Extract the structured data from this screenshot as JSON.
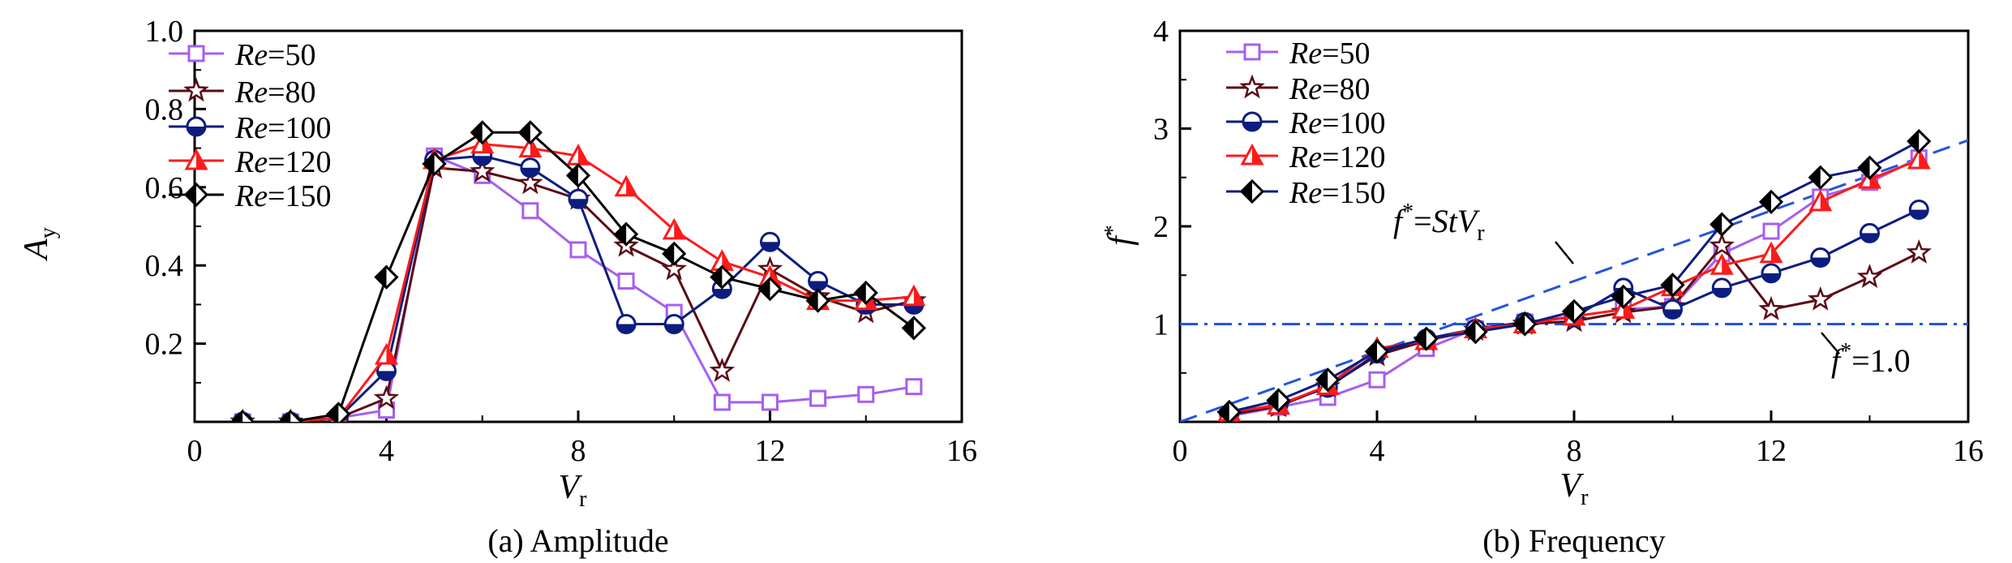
{
  "colors": {
    "re50": "#a65ff0",
    "re80": "#5a0d15",
    "re100": "#0c1d7f",
    "re120": "#ff1a1a",
    "re150": "#000000",
    "ref": "#2255dd"
  },
  "chart_data": [
    {
      "type": "line",
      "caption": "(a) Amplitude",
      "xlabel": "V",
      "xlabel_sub": "r",
      "ylabel": "A",
      "ylabel_sub": "y",
      "xlim": [
        0,
        16
      ],
      "ylim": [
        0,
        1.0
      ],
      "xticks": [
        0,
        4,
        8,
        12,
        16
      ],
      "yticks": [
        0.2,
        0.4,
        0.6,
        0.8,
        1.0
      ],
      "ytick_labels": [
        "0.2",
        "0.4",
        "0.6",
        "0.8",
        "1.0"
      ],
      "grid": false,
      "legend": "top-left",
      "x": [
        1,
        2,
        3,
        4,
        5,
        6,
        7,
        8,
        9,
        10,
        11,
        12,
        13,
        14,
        15
      ],
      "series": [
        {
          "name": "Re=50",
          "re": "50",
          "marker": "square",
          "color_key": "re50",
          "values": [
            0.0,
            0.0,
            0.01,
            0.03,
            0.68,
            0.63,
            0.54,
            0.44,
            0.36,
            0.28,
            0.05,
            0.05,
            0.06,
            0.07,
            0.09
          ]
        },
        {
          "name": "Re=80",
          "re": "80",
          "marker": "star",
          "color_key": "re80",
          "values": [
            0.0,
            0.0,
            0.01,
            0.06,
            0.65,
            0.64,
            0.61,
            0.57,
            0.45,
            0.39,
            0.13,
            0.39,
            0.32,
            0.28,
            0.31
          ]
        },
        {
          "name": "Re=100",
          "re": "100",
          "marker": "circle",
          "color_key": "re100",
          "values": [
            0.0,
            0.0,
            0.01,
            0.13,
            0.67,
            0.68,
            0.65,
            0.57,
            0.25,
            0.25,
            0.34,
            0.46,
            0.36,
            0.3,
            0.3
          ]
        },
        {
          "name": "Re=120",
          "re": "120",
          "marker": "triangle",
          "color_key": "re120",
          "values": [
            0.0,
            0.0,
            0.01,
            0.17,
            0.67,
            0.71,
            0.7,
            0.68,
            0.6,
            0.49,
            0.41,
            0.37,
            0.31,
            0.31,
            0.32
          ]
        },
        {
          "name": "Re=150",
          "re": "150",
          "marker": "diamond",
          "color_key": "re150",
          "values": [
            0.0,
            0.0,
            0.02,
            0.37,
            0.66,
            0.74,
            0.74,
            0.63,
            0.48,
            0.43,
            0.37,
            0.34,
            0.31,
            0.33,
            0.24
          ]
        }
      ]
    },
    {
      "type": "line",
      "caption": "(b) Frequency",
      "xlabel": "V",
      "xlabel_sub": "r",
      "ylabel": "f",
      "ylabel_sup": "*",
      "xlim": [
        0,
        16
      ],
      "ylim": [
        0,
        4
      ],
      "xticks": [
        0,
        4,
        8,
        12,
        16
      ],
      "yticks": [
        1,
        2,
        3,
        4
      ],
      "ytick_labels": [
        "1",
        "2",
        "3",
        "4"
      ],
      "grid": false,
      "legend": "top-left",
      "x": [
        1,
        2,
        3,
        4,
        5,
        6,
        7,
        8,
        9,
        10,
        11,
        12,
        13,
        14,
        15
      ],
      "series": [
        {
          "name": "Re=50",
          "re": "50",
          "marker": "square",
          "color_key": "re50",
          "values": [
            0.06,
            0.15,
            0.25,
            0.43,
            0.75,
            0.95,
            1.02,
            1.08,
            1.15,
            1.18,
            1.72,
            1.95,
            2.3,
            2.45,
            2.7
          ]
        },
        {
          "name": "Re=80",
          "re": "80",
          "marker": "star",
          "color_key": "re80",
          "values": [
            0.07,
            0.16,
            0.36,
            0.68,
            0.83,
            0.94,
            1.0,
            1.03,
            1.12,
            1.18,
            1.8,
            1.15,
            1.25,
            1.48,
            1.73
          ]
        },
        {
          "name": "Re=100",
          "re": "100",
          "marker": "circle",
          "color_key": "re100",
          "values": [
            0.08,
            0.18,
            0.35,
            0.7,
            0.85,
            0.95,
            1.02,
            1.07,
            1.37,
            1.15,
            1.37,
            1.52,
            1.68,
            1.93,
            2.17
          ]
        },
        {
          "name": "Re=120",
          "re": "120",
          "marker": "triangle",
          "color_key": "re120",
          "values": [
            0.1,
            0.17,
            0.37,
            0.75,
            0.83,
            0.95,
            1.0,
            1.08,
            1.15,
            1.38,
            1.6,
            1.72,
            2.25,
            2.48,
            2.68
          ]
        },
        {
          "name": "Re=150",
          "re": "150",
          "marker": "diamond",
          "color_key": "re150",
          "values": [
            0.1,
            0.22,
            0.43,
            0.72,
            0.85,
            0.92,
            1.0,
            1.13,
            1.28,
            1.4,
            2.02,
            2.25,
            2.5,
            2.6,
            2.87
          ]
        }
      ],
      "reference_lines": [
        {
          "kind": "StV",
          "slope": 0.18,
          "style": "dashed"
        },
        {
          "kind": "const",
          "value": 1.0,
          "style": "dash-dot"
        }
      ],
      "annotations": {
        "stv_f": "f",
        "stv_sup": "*",
        "stv_eq": "=",
        "stv_st": "StV",
        "stv_sub": "r",
        "one_f": "f",
        "one_sup": "*",
        "one_eq": "=1.0"
      }
    }
  ]
}
